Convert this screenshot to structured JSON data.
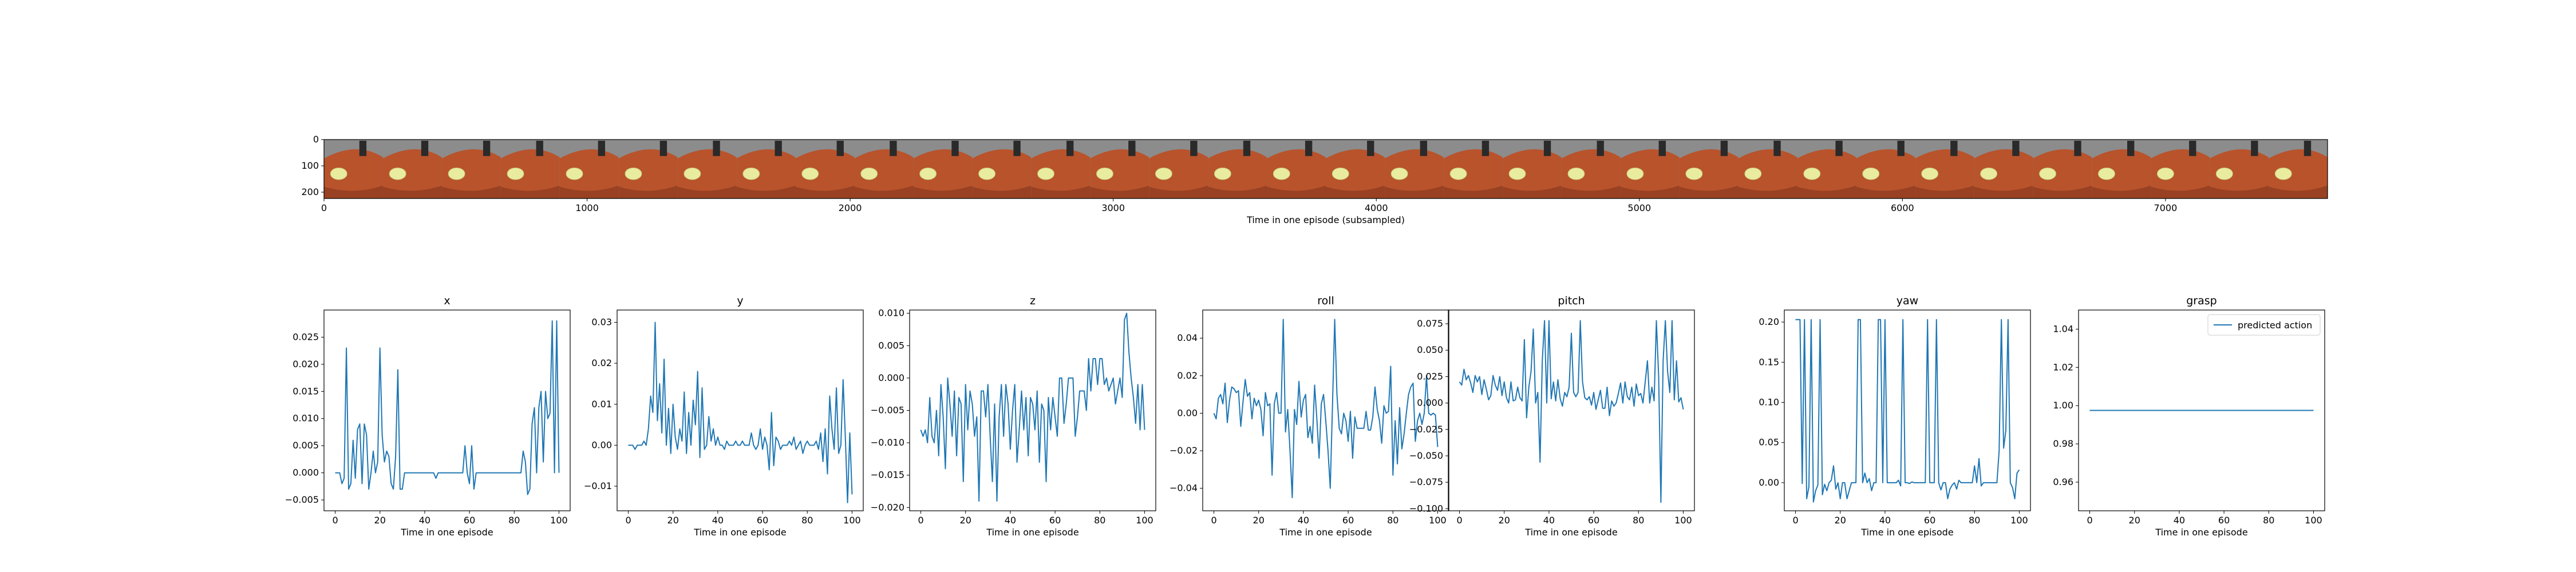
{
  "figure": {
    "filmstrip": {
      "xlabel": "Time in one episode (subsampled)",
      "x_ticks": [
        "0",
        "1000",
        "2000",
        "3000",
        "4000",
        "5000",
        "6000",
        "7000"
      ],
      "y_ticks": [
        "0",
        "100",
        "200"
      ],
      "xlim": [
        0,
        7616
      ],
      "frame_count": 34,
      "frame_width": 224,
      "colors": {
        "background_gray": "#8c8c8c",
        "surface_orange": "#b8532c",
        "surface_dark": "#7a3018",
        "spot_yellow": "#e9ec9e",
        "gripper_dark": "#2a2a2a"
      }
    }
  },
  "chart_data": [
    {
      "type": "line",
      "title": "x",
      "xlabel": "Time in one episode",
      "ylabel": "",
      "xlim": [
        -5,
        105
      ],
      "ylim": [
        -0.007,
        0.03
      ],
      "x_ticks": [
        "0",
        "20",
        "40",
        "60",
        "80",
        "100"
      ],
      "y_ticks": [
        {
          "v": -0.005,
          "label": "−0.005"
        },
        {
          "v": 0.0,
          "label": "0.000"
        },
        {
          "v": 0.005,
          "label": "0.005"
        },
        {
          "v": 0.01,
          "label": "0.010"
        },
        {
          "v": 0.015,
          "label": "0.015"
        },
        {
          "v": 0.02,
          "label": "0.020"
        },
        {
          "v": 0.025,
          "label": "0.025"
        }
      ],
      "color": "#1f77b4",
      "series": [
        {
          "values": [
            0.0,
            0.0,
            0.0,
            -0.002,
            -0.001,
            0.023,
            -0.003,
            -0.002,
            0.006,
            -0.001,
            0.008,
            0.009,
            -0.002,
            0.009,
            0.007,
            -0.003,
            0.0,
            0.004,
            0.0,
            0.002,
            0.023,
            0.007,
            0.002,
            0.004,
            0.003,
            -0.002,
            -0.003,
            0.003,
            0.019,
            -0.003,
            -0.003,
            0.0,
            0.0,
            0.0,
            0.0,
            0.0,
            0.0,
            0.0,
            0.0,
            0.0,
            0.0,
            0.0,
            0.0,
            0.0,
            0.0,
            -0.001,
            0.0,
            0.0,
            0.0,
            0.0,
            0.0,
            0.0,
            0.0,
            0.0,
            0.0,
            0.0,
            0.0,
            0.0,
            0.005,
            0.0,
            -0.002,
            0.005,
            -0.003,
            0.0,
            0.0,
            0.0,
            0.0,
            0.0,
            0.0,
            0.0,
            0.0,
            0.0,
            0.0,
            0.0,
            0.0,
            0.0,
            0.0,
            0.0,
            0.0,
            0.0,
            0.0,
            0.0,
            0.0,
            0.0,
            0.004,
            0.002,
            -0.004,
            -0.003,
            0.009,
            0.012,
            0.0,
            0.012,
            0.015,
            0.002,
            0.015,
            0.01,
            0.011,
            0.028,
            0.0,
            0.028,
            0.0
          ]
        }
      ]
    },
    {
      "type": "line",
      "title": "y",
      "xlabel": "Time in one episode",
      "ylabel": "",
      "xlim": [
        -5,
        105
      ],
      "ylim": [
        -0.016,
        0.033
      ],
      "x_ticks": [
        "0",
        "20",
        "40",
        "60",
        "80",
        "100"
      ],
      "y_ticks": [
        {
          "v": -0.01,
          "label": "−0.01"
        },
        {
          "v": 0.0,
          "label": "0.00"
        },
        {
          "v": 0.01,
          "label": "0.01"
        },
        {
          "v": 0.02,
          "label": "0.02"
        },
        {
          "v": 0.03,
          "label": "0.03"
        }
      ],
      "color": "#1f77b4",
      "series": [
        {
          "values": [
            0.0,
            0.0,
            0.0,
            -0.001,
            0.0,
            0.0,
            0.0,
            0.001,
            0.0,
            0.004,
            0.012,
            0.008,
            0.03,
            0.006,
            0.015,
            0.003,
            0.021,
            0.0,
            0.009,
            -0.002,
            0.01,
            0.002,
            -0.001,
            0.004,
            0.001,
            0.013,
            -0.002,
            0.008,
            0.0,
            0.011,
            0.005,
            0.018,
            -0.003,
            0.014,
            -0.001,
            0.0,
            0.007,
            0.001,
            0.004,
            0.0,
            0.002,
            0.0,
            0.0,
            -0.001,
            0.001,
            0.0,
            0.0,
            0.0,
            0.001,
            0.0,
            0.0,
            0.001,
            0.0,
            0.0,
            0.0,
            0.003,
            0.0,
            -0.001,
            0.0,
            0.004,
            -0.001,
            0.002,
            0.0,
            -0.006,
            0.008,
            -0.005,
            0.002,
            0.001,
            -0.001,
            0.0,
            0.0,
            0.0,
            0.001,
            0.0,
            0.002,
            -0.001,
            0.0,
            0.001,
            -0.002,
            0.0,
            0.001,
            0.0,
            0.0,
            0.0,
            0.001,
            -0.001,
            0.003,
            -0.004,
            0.004,
            -0.007,
            0.012,
            0.004,
            -0.001,
            0.014,
            -0.002,
            0.0,
            0.016,
            0.002,
            -0.014,
            0.003,
            -0.012
          ]
        }
      ]
    },
    {
      "type": "line",
      "title": "z",
      "xlabel": "Time in one episode",
      "ylabel": "",
      "xlim": [
        -5,
        105
      ],
      "ylim": [
        -0.0205,
        0.0105
      ],
      "x_ticks": [
        "0",
        "20",
        "40",
        "60",
        "80",
        "100"
      ],
      "y_ticks": [
        {
          "v": -0.02,
          "label": "−0.020"
        },
        {
          "v": -0.015,
          "label": "−0.015"
        },
        {
          "v": -0.01,
          "label": "−0.010"
        },
        {
          "v": -0.005,
          "label": "−0.005"
        },
        {
          "v": 0.0,
          "label": "0.000"
        },
        {
          "v": 0.005,
          "label": "0.005"
        },
        {
          "v": 0.01,
          "label": "0.010"
        }
      ],
      "color": "#1f77b4",
      "series": [
        {
          "values": [
            -0.008,
            -0.009,
            -0.008,
            -0.01,
            -0.003,
            -0.009,
            -0.01,
            -0.005,
            -0.012,
            -0.001,
            -0.006,
            -0.014,
            0.0,
            -0.004,
            -0.009,
            -0.002,
            -0.012,
            -0.003,
            -0.004,
            -0.016,
            -0.001,
            -0.008,
            -0.002,
            -0.004,
            -0.009,
            -0.006,
            -0.019,
            -0.002,
            -0.002,
            -0.006,
            -0.001,
            -0.009,
            -0.016,
            -0.004,
            -0.019,
            -0.006,
            -0.001,
            -0.009,
            -0.001,
            -0.004,
            -0.011,
            -0.005,
            -0.001,
            -0.013,
            -0.008,
            -0.002,
            -0.008,
            -0.003,
            -0.012,
            -0.003,
            -0.004,
            -0.008,
            -0.002,
            -0.013,
            -0.004,
            -0.005,
            -0.016,
            -0.003,
            -0.008,
            -0.003,
            -0.006,
            -0.009,
            0.0,
            0.0,
            -0.007,
            -0.004,
            0.0,
            0.0,
            0.0,
            -0.009,
            -0.006,
            -0.002,
            -0.002,
            -0.002,
            -0.005,
            0.003,
            -0.002,
            0.003,
            0.003,
            -0.001,
            0.003,
            0.003,
            -0.001,
            0.0,
            -0.002,
            -0.001,
            0.0,
            -0.004,
            -0.002,
            0.0,
            -0.003,
            0.009,
            0.01,
            0.004,
            0.0,
            -0.003,
            -0.007,
            -0.001,
            -0.008,
            -0.001,
            -0.008
          ]
        }
      ]
    },
    {
      "type": "line",
      "title": "roll",
      "xlabel": "Time in one episode",
      "ylabel": "",
      "xlim": [
        -5,
        105
      ],
      "ylim": [
        -0.052,
        0.055
      ],
      "x_ticks": [
        "0",
        "20",
        "40",
        "60",
        "80",
        "100"
      ],
      "y_ticks": [
        {
          "v": -0.04,
          "label": "−0.04"
        },
        {
          "v": -0.02,
          "label": "−0.02"
        },
        {
          "v": 0.0,
          "label": "0.00"
        },
        {
          "v": 0.02,
          "label": "0.02"
        },
        {
          "v": 0.04,
          "label": "0.04"
        }
      ],
      "color": "#1f77b4",
      "series": [
        {
          "values": [
            0.0,
            -0.003,
            0.008,
            0.01,
            0.005,
            0.016,
            -0.005,
            0.007,
            0.014,
            0.013,
            0.011,
            0.012,
            -0.007,
            0.006,
            0.018,
            0.009,
            0.011,
            -0.003,
            0.008,
            0.004,
            0.007,
            0.002,
            -0.012,
            0.011,
            0.004,
            0.005,
            -0.033,
            0.005,
            0.011,
            0.0,
            0.0,
            0.05,
            -0.01,
            0.002,
            -0.02,
            -0.045,
            0.002,
            -0.006,
            0.017,
            -0.002,
            0.007,
            0.01,
            -0.013,
            -0.007,
            -0.016,
            0.015,
            -0.003,
            -0.024,
            0.005,
            0.01,
            -0.004,
            -0.02,
            -0.04,
            0.004,
            0.05,
            0.01,
            -0.008,
            -0.011,
            0.0,
            -0.004,
            -0.015,
            0.001,
            -0.024,
            -0.002,
            -0.008,
            -0.008,
            -0.008,
            -0.008,
            0.001,
            -0.009,
            -0.009,
            -0.002,
            0.014,
            0.002,
            -0.004,
            -0.016,
            0.004,
            0.0,
            0.001,
            0.025,
            -0.033,
            -0.004,
            -0.027,
            0.003,
            -0.019,
            -0.011,
            0.0,
            0.01,
            0.014,
            0.016,
            -0.015,
            -0.004,
            0.0,
            -0.006,
            0.0,
            0.02,
            0.0,
            -0.001,
            0.0,
            -0.001,
            -0.018
          ]
        }
      ]
    },
    {
      "type": "line",
      "title": "pitch",
      "xlabel": "Time in one episode",
      "ylabel": "",
      "xlim": [
        -5,
        105
      ],
      "ylim": [
        -0.102,
        0.088
      ],
      "x_ticks": [
        "0",
        "20",
        "40",
        "60",
        "80",
        "100"
      ],
      "y_ticks": [
        {
          "v": -0.1,
          "label": "−0.100"
        },
        {
          "v": -0.075,
          "label": "−0.075"
        },
        {
          "v": -0.05,
          "label": "−0.050"
        },
        {
          "v": -0.025,
          "label": "−0.025"
        },
        {
          "v": 0.0,
          "label": "0.000"
        },
        {
          "v": 0.025,
          "label": "0.025"
        },
        {
          "v": 0.05,
          "label": "0.050"
        },
        {
          "v": 0.075,
          "label": "0.075"
        }
      ],
      "color": "#1f77b4",
      "series": [
        {
          "values": [
            0.02,
            0.017,
            0.032,
            0.022,
            0.026,
            0.019,
            0.01,
            0.026,
            0.02,
            0.025,
            0.008,
            0.022,
            0.013,
            0.003,
            0.007,
            0.026,
            0.017,
            0.012,
            0.025,
            0.007,
            0.02,
            0.005,
            0.0,
            0.02,
            0.002,
            0.003,
            0.015,
            0.005,
            0.002,
            0.06,
            -0.014,
            0.015,
            0.03,
            0.07,
            0.0,
            0.01,
            -0.056,
            0.04,
            0.078,
            0.0,
            0.078,
            0.004,
            0.02,
            0.002,
            0.022,
            0.004,
            -0.003,
            0.01,
            0.006,
            0.015,
            0.066,
            0.01,
            0.006,
            0.01,
            0.078,
            0.02,
            0.005,
            0.003,
            0.006,
            -0.002,
            0.01,
            -0.006,
            0.003,
            0.012,
            -0.005,
            -0.005,
            0.015,
            -0.012,
            0.002,
            -0.003,
            0.0,
            0.009,
            0.019,
            0.0,
            0.02,
            0.006,
            0.003,
            0.015,
            -0.003,
            0.018,
            0.007,
            0.009,
            0.0,
            0.02,
            0.04,
            0.0,
            0.015,
            0.002,
            0.078,
            0.025,
            -0.094,
            0.04,
            0.078,
            0.03,
            0.01,
            0.078,
            0.003,
            0.04,
            0.001,
            0.005,
            -0.006
          ]
        }
      ]
    },
    {
      "type": "line",
      "title": "yaw",
      "xlabel": "Time in one episode",
      "ylabel": "",
      "xlim": [
        -5,
        105
      ],
      "ylim": [
        -0.035,
        0.215
      ],
      "x_ticks": [
        "0",
        "20",
        "40",
        "60",
        "80",
        "100"
      ],
      "y_ticks": [
        {
          "v": 0.0,
          "label": "0.00"
        },
        {
          "v": 0.05,
          "label": "0.05"
        },
        {
          "v": 0.1,
          "label": "0.10"
        },
        {
          "v": 0.15,
          "label": "0.15"
        },
        {
          "v": 0.2,
          "label": "0.20"
        }
      ],
      "color": "#1f77b4",
      "series": [
        {
          "values": [
            0.203,
            0.203,
            0.203,
            -0.001,
            0.203,
            -0.02,
            -0.005,
            0.203,
            -0.024,
            -0.01,
            -0.003,
            0.203,
            -0.015,
            -0.002,
            -0.01,
            0.0,
            0.003,
            0.021,
            -0.008,
            0.0,
            -0.02,
            0.0,
            0.0,
            -0.02,
            -0.01,
            0.0,
            0.0,
            0.0,
            0.203,
            0.203,
            0.0,
            0.012,
            0.0,
            0.005,
            -0.01,
            0.0,
            0.0,
            0.203,
            0.203,
            0.0,
            0.203,
            0.0,
            0.0,
            0.0,
            0.0,
            0.0,
            0.003,
            -0.004,
            0.203,
            0.0,
            0.0,
            -0.001,
            0.001,
            0.0,
            0.0,
            0.0,
            0.0,
            0.0,
            0.0,
            0.203,
            0.0,
            0.0,
            0.0,
            0.203,
            0.0,
            -0.009,
            0.0,
            0.0,
            -0.02,
            -0.008,
            -0.003,
            0.0,
            -0.008,
            0.003,
            0.0,
            0.0,
            0.0,
            0.0,
            0.0,
            0.0,
            0.021,
            0.0,
            0.03,
            -0.004,
            0.0,
            0.0,
            0.0,
            0.0,
            0.0,
            0.0,
            0.0,
            0.04,
            0.203,
            0.043,
            0.065,
            0.203,
            0.0,
            -0.006,
            -0.02,
            0.012,
            0.016
          ]
        }
      ]
    },
    {
      "type": "line",
      "title": "grasp",
      "xlabel": "Time in one episode",
      "ylabel": "",
      "xlim": [
        -5,
        105
      ],
      "ylim": [
        0.945,
        1.05
      ],
      "x_ticks": [
        "0",
        "20",
        "40",
        "60",
        "80",
        "100"
      ],
      "y_ticks": [
        {
          "v": 0.96,
          "label": "0.96"
        },
        {
          "v": 0.98,
          "label": "0.98"
        },
        {
          "v": 1.0,
          "label": "1.00"
        },
        {
          "v": 1.02,
          "label": "1.02"
        },
        {
          "v": 1.04,
          "label": "1.04"
        }
      ],
      "color": "#1f77b4",
      "legend": {
        "label": "predicted action",
        "position": "upper right"
      },
      "series": [
        {
          "name": "predicted action",
          "constant": 0.9975,
          "length": 101
        }
      ]
    }
  ]
}
